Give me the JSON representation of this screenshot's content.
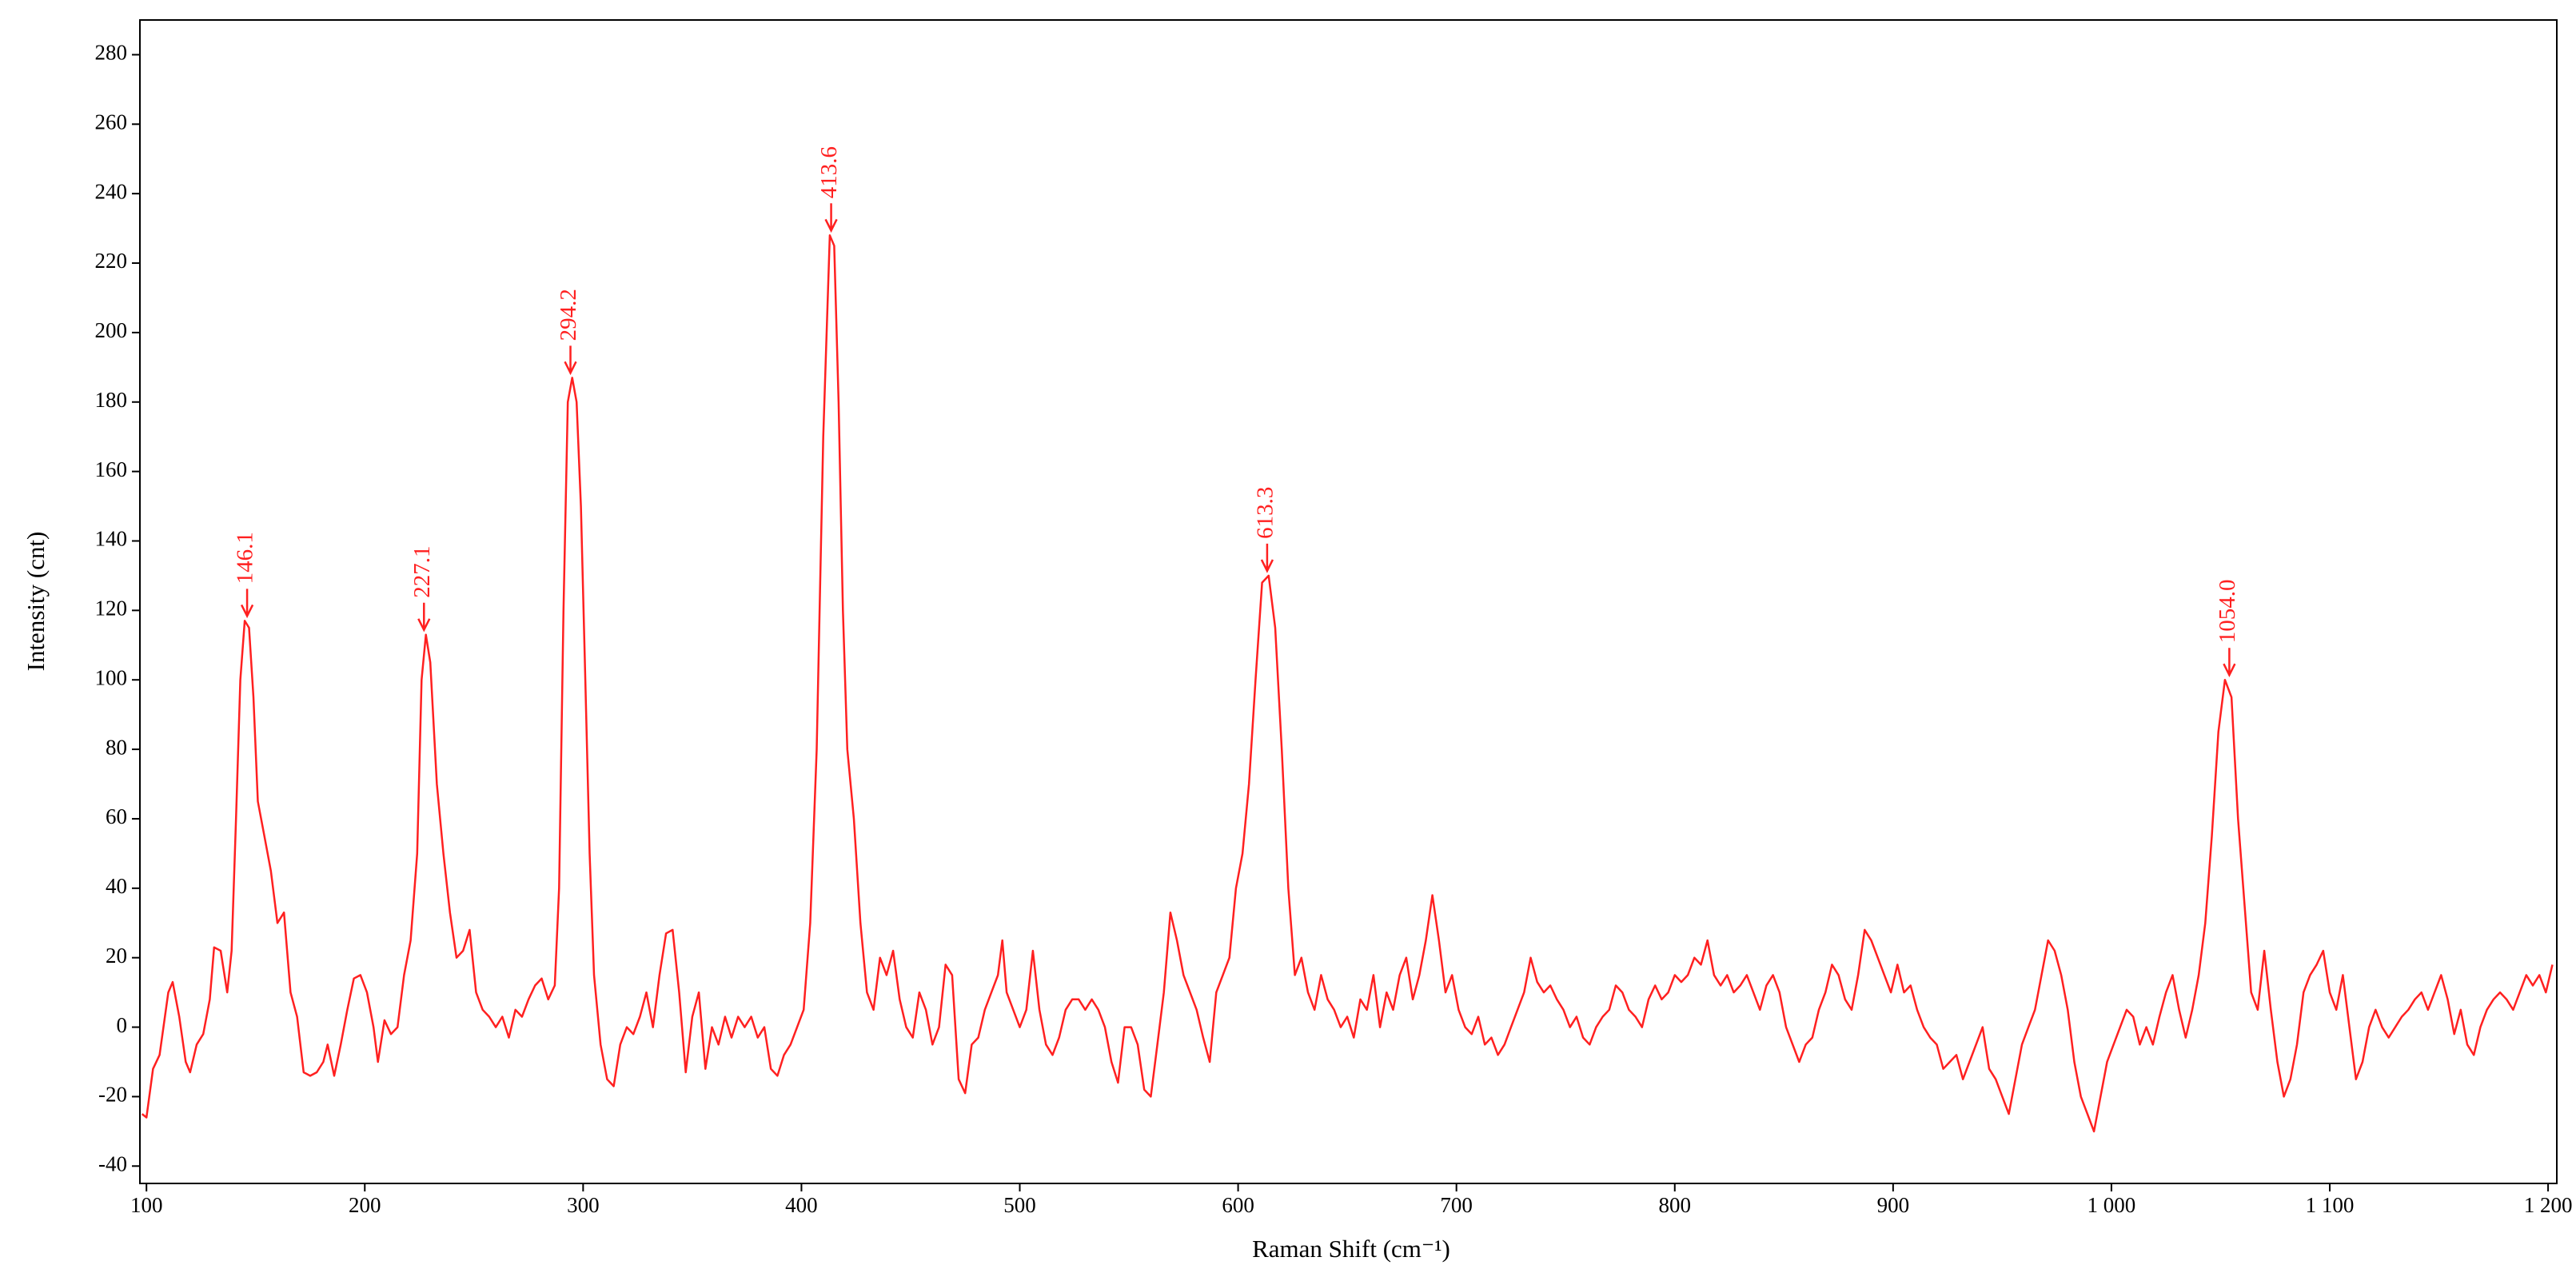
{
  "chart_data": {
    "type": "line",
    "xlabel": "Raman Shift (cm⁻¹)",
    "ylabel": "Intensity (cnt)",
    "xlim": [
      97,
      1204
    ],
    "ylim": [
      -45,
      290
    ],
    "xticks": [
      100,
      200,
      300,
      400,
      500,
      600,
      700,
      800,
      900,
      {
        "value": 1000,
        "label": "1 000"
      },
      {
        "value": 1100,
        "label": "1 100"
      },
      {
        "value": 1200,
        "label": "1 200"
      }
    ],
    "yticks": [
      -40,
      -20,
      0,
      20,
      40,
      60,
      80,
      100,
      120,
      140,
      160,
      180,
      200,
      220,
      240,
      260,
      280
    ],
    "color": "#ff2020",
    "annotations": [
      {
        "x": 146.1,
        "y": 117,
        "label": "146.1"
      },
      {
        "x": 227.1,
        "y": 113,
        "label": "227.1"
      },
      {
        "x": 294.2,
        "y": 187,
        "label": "294.2"
      },
      {
        "x": 413.6,
        "y": 228,
        "label": "413.6"
      },
      {
        "x": 613.3,
        "y": 130,
        "label": "613.3"
      },
      {
        "x": 1054.0,
        "y": 100,
        "label": "1054.0"
      }
    ],
    "x": [
      98,
      100,
      103,
      106,
      110,
      112,
      115,
      118,
      120,
      123,
      126,
      129,
      131,
      134,
      137,
      139,
      141,
      143,
      145,
      147,
      149,
      151,
      154,
      157,
      160,
      163,
      166,
      169,
      172,
      175,
      178,
      181,
      183,
      186,
      189,
      192,
      195,
      198,
      201,
      204,
      206,
      209,
      212,
      215,
      218,
      221,
      224,
      226,
      228,
      230,
      233,
      236,
      239,
      242,
      245,
      248,
      251,
      254,
      257,
      260,
      263,
      266,
      269,
      272,
      275,
      278,
      281,
      284,
      287,
      289,
      291,
      293,
      295,
      297,
      299,
      301,
      303,
      305,
      308,
      311,
      314,
      317,
      320,
      323,
      326,
      329,
      332,
      335,
      338,
      341,
      344,
      347,
      350,
      353,
      356,
      359,
      362,
      365,
      368,
      371,
      374,
      377,
      380,
      383,
      386,
      389,
      392,
      395,
      398,
      401,
      404,
      407,
      410,
      413,
      415,
      417,
      419,
      421,
      424,
      427,
      430,
      433,
      436,
      439,
      442,
      445,
      448,
      451,
      454,
      457,
      460,
      463,
      466,
      469,
      472,
      475,
      478,
      481,
      484,
      487,
      490,
      492,
      494,
      497,
      500,
      503,
      506,
      509,
      512,
      515,
      518,
      521,
      524,
      527,
      530,
      533,
      536,
      539,
      542,
      545,
      548,
      551,
      554,
      557,
      560,
      563,
      566,
      569,
      572,
      575,
      578,
      581,
      584,
      587,
      590,
      593,
      596,
      599,
      602,
      605,
      608,
      611,
      614,
      617,
      620,
      623,
      626,
      629,
      632,
      635,
      638,
      641,
      644,
      647,
      650,
      653,
      656,
      659,
      662,
      665,
      668,
      671,
      674,
      677,
      680,
      683,
      686,
      689,
      692,
      695,
      698,
      701,
      704,
      707,
      710,
      713,
      716,
      719,
      722,
      725,
      728,
      731,
      734,
      737,
      740,
      743,
      746,
      749,
      752,
      755,
      758,
      761,
      764,
      767,
      770,
      773,
      776,
      779,
      782,
      785,
      788,
      791,
      794,
      797,
      800,
      803,
      806,
      809,
      812,
      815,
      818,
      821,
      824,
      827,
      830,
      833,
      836,
      839,
      842,
      845,
      848,
      851,
      854,
      857,
      860,
      863,
      866,
      869,
      872,
      875,
      878,
      881,
      884,
      887,
      890,
      893,
      896,
      899,
      902,
      905,
      908,
      911,
      914,
      917,
      920,
      923,
      926,
      929,
      932,
      935,
      938,
      941,
      944,
      947,
      950,
      953,
      956,
      959,
      962,
      965,
      968,
      971,
      974,
      977,
      980,
      983,
      986,
      989,
      992,
      995,
      998,
      1001,
      1004,
      1007,
      1010,
      1013,
      1016,
      1019,
      1022,
      1025,
      1028,
      1031,
      1034,
      1037,
      1040,
      1043,
      1046,
      1049,
      1052,
      1055,
      1058,
      1061,
      1064,
      1067,
      1070,
      1073,
      1076,
      1079,
      1082,
      1085,
      1088,
      1091,
      1094,
      1097,
      1100,
      1103,
      1106,
      1109,
      1112,
      1115,
      1118,
      1121,
      1124,
      1127,
      1130,
      1133,
      1136,
      1139,
      1142,
      1145,
      1148,
      1151,
      1154,
      1157,
      1160,
      1163,
      1166,
      1169,
      1172,
      1175,
      1178,
      1181,
      1184,
      1187,
      1190,
      1193,
      1196,
      1199,
      1202
    ],
    "values": [
      -25,
      -26,
      -12,
      -8,
      10,
      13,
      3,
      -10,
      -13,
      -5,
      -2,
      8,
      23,
      22,
      10,
      22,
      60,
      100,
      117,
      115,
      95,
      65,
      55,
      45,
      30,
      33,
      10,
      3,
      -13,
      -14,
      -13,
      -10,
      -5,
      -14,
      -5,
      5,
      14,
      15,
      10,
      0,
      -10,
      2,
      -2,
      0,
      15,
      25,
      50,
      100,
      113,
      105,
      70,
      50,
      33,
      20,
      22,
      28,
      10,
      5,
      3,
      0,
      3,
      -3,
      5,
      3,
      8,
      12,
      14,
      8,
      12,
      40,
      120,
      180,
      187,
      180,
      150,
      100,
      50,
      15,
      -5,
      -15,
      -17,
      -5,
      0,
      -2,
      3,
      10,
      0,
      15,
      27,
      28,
      10,
      -13,
      3,
      10,
      -12,
      0,
      -5,
      3,
      -3,
      3,
      0,
      3,
      -3,
      0,
      -12,
      -14,
      -8,
      -5,
      0,
      5,
      30,
      80,
      170,
      228,
      225,
      180,
      120,
      80,
      60,
      30,
      10,
      5,
      20,
      15,
      22,
      8,
      0,
      -3,
      10,
      5,
      -5,
      0,
      18,
      15,
      -15,
      -19,
      -5,
      -3,
      5,
      10,
      15,
      25,
      10,
      5,
      0,
      5,
      22,
      5,
      -5,
      -8,
      -3,
      5,
      8,
      8,
      5,
      8,
      5,
      0,
      -10,
      -16,
      0,
      0,
      -5,
      -18,
      -20,
      -5,
      10,
      33,
      25,
      15,
      10,
      5,
      -3,
      -10,
      10,
      15,
      20,
      40,
      50,
      70,
      100,
      128,
      130,
      115,
      80,
      40,
      15,
      20,
      10,
      5,
      15,
      8,
      5,
      0,
      3,
      -3,
      8,
      5,
      15,
      0,
      10,
      5,
      15,
      20,
      8,
      15,
      25,
      38,
      25,
      10,
      15,
      5,
      0,
      -2,
      3,
      -5,
      -3,
      -8,
      -5,
      0,
      5,
      10,
      20,
      13,
      10,
      12,
      8,
      5,
      0,
      3,
      -3,
      -5,
      0,
      3,
      5,
      12,
      10,
      5,
      3,
      0,
      8,
      12,
      8,
      10,
      15,
      13,
      15,
      20,
      18,
      25,
      15,
      12,
      15,
      10,
      12,
      15,
      10,
      5,
      12,
      15,
      10,
      0,
      -5,
      -10,
      -5,
      -3,
      5,
      10,
      18,
      15,
      8,
      5,
      15,
      28,
      25,
      20,
      15,
      10,
      18,
      10,
      12,
      5,
      0,
      -3,
      -5,
      -12,
      -10,
      -8,
      -15,
      -10,
      -5,
      0,
      -12,
      -15,
      -20,
      -25,
      -15,
      -5,
      0,
      5,
      15,
      25,
      22,
      15,
      5,
      -10,
      -20,
      -25,
      -30,
      -20,
      -10,
      -5,
      0,
      5,
      3,
      -5,
      0,
      -5,
      3,
      10,
      15,
      5,
      -3,
      5,
      15,
      30,
      55,
      85,
      100,
      95,
      60,
      35,
      10,
      5,
      22,
      5,
      -10,
      -20,
      -15,
      -5,
      10,
      15,
      18,
      22,
      10,
      5,
      15,
      0,
      -15,
      -10,
      0,
      5,
      0,
      -3,
      0,
      3,
      5,
      8,
      10,
      5,
      10,
      15,
      8,
      -2,
      5,
      -5,
      -8,
      0,
      5,
      8,
      10,
      8,
      5,
      10,
      15,
      12,
      15,
      10,
      18
    ]
  }
}
